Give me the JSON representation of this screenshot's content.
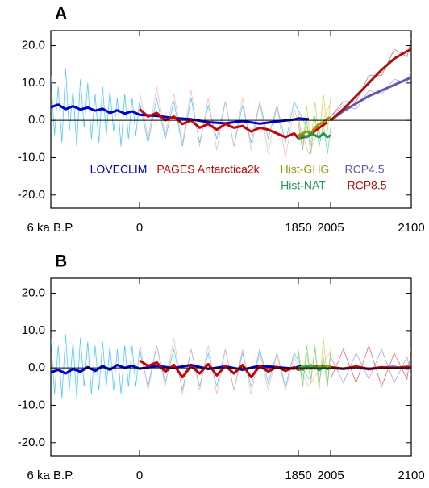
{
  "chart_data": [
    {
      "type": "line",
      "title": "A",
      "xlim": [
        -6000,
        2100
      ],
      "xticks": [
        {
          "value": -6000,
          "label": "6 ka B.P."
        },
        0,
        1850,
        2005,
        2100
      ],
      "ylim": [
        -23.5,
        24
      ],
      "yticks": [
        {
          "value": 20,
          "label": "20.0"
        },
        {
          "value": 10,
          "label": "10.0"
        },
        {
          "value": 0,
          "label": "0.0"
        },
        {
          "value": -10,
          "label": "-10.0"
        },
        {
          "value": -20,
          "label": "-20.0"
        }
      ],
      "series": [
        {
          "name": "LOVECLIM",
          "color": "#0000cc",
          "light_color": "#22bbff",
          "x": [
            -6000,
            -5500,
            -5000,
            -4500,
            -4000,
            -3500,
            -3000,
            -2500,
            -2000,
            -1500,
            -1000,
            -500,
            0,
            200,
            400,
            600,
            800,
            1000,
            1200,
            1400,
            1600,
            1800,
            1850,
            1900
          ],
          "values": [
            3.5,
            4.2,
            3.0,
            3.8,
            2.9,
            3.4,
            2.6,
            3.1,
            2.0,
            2.7,
            1.8,
            2.4,
            1.5,
            1.2,
            0.6,
            0.3,
            -0.5,
            -0.8,
            -0.2,
            -0.9,
            -0.3,
            0.2,
            0.5,
            0.3
          ],
          "raw_x": [
            -6000,
            -5750,
            -5500,
            -5250,
            -5000,
            -4750,
            -4500,
            -4250,
            -4000,
            -3750,
            -3500,
            -3250,
            -3000,
            -2750,
            -2500,
            -2250,
            -2000,
            -1750,
            -1500,
            -1250,
            -1000,
            -750,
            -500,
            -250,
            0,
            100,
            200,
            300,
            400,
            500,
            600,
            700,
            800,
            900,
            1000,
            1100,
            1200,
            1300,
            1400,
            1500,
            1600,
            1700,
            1800,
            1900
          ],
          "raw_values": [
            12,
            -4,
            9,
            -6,
            14,
            -3,
            8,
            -7,
            11,
            -2,
            10,
            -5,
            7,
            -6,
            9,
            -4,
            8,
            -3,
            6,
            -7,
            7,
            -5,
            6,
            -4,
            5,
            -6,
            6,
            -5,
            5,
            -7,
            6,
            -6,
            4,
            -5,
            5,
            -7,
            4,
            -6,
            5,
            -5,
            4,
            -6,
            5,
            -3
          ]
        },
        {
          "name": "PAGES Antarctica2k",
          "color": "#cc0000",
          "light_color": "#ffaaaa",
          "x": [
            0,
            100,
            200,
            300,
            400,
            500,
            600,
            700,
            800,
            900,
            1000,
            1100,
            1200,
            1300,
            1400,
            1500,
            1600,
            1700,
            1800,
            1850,
            1900,
            1950,
            1990
          ],
          "values": [
            3,
            1,
            2,
            0,
            1,
            -1,
            0,
            -2,
            -1,
            -2.5,
            -1,
            -2,
            -1.5,
            -3,
            -2,
            -2.5,
            -3.5,
            -4.5,
            -3.5,
            -4.8,
            -4.2,
            -2,
            -0.5
          ],
          "raw_x": [
            0,
            100,
            200,
            300,
            400,
            500,
            600,
            700,
            800,
            900,
            1000,
            1100,
            1200,
            1300,
            1400,
            1500,
            1600,
            1700,
            1800,
            1900,
            2000
          ],
          "raw_values": [
            8,
            -5,
            9,
            -4,
            7,
            -6,
            8,
            -7,
            6,
            -8,
            5,
            -7,
            6,
            -8,
            5,
            -9,
            4,
            -10,
            3,
            -9,
            4
          ]
        },
        {
          "name": "Hist-GHG",
          "color": "#999900",
          "light_color": "#cccc33",
          "x": [
            1850,
            1870,
            1890,
            1910,
            1930,
            1950,
            1970,
            1990,
            2005
          ],
          "values": [
            -4,
            -3.5,
            -3,
            -3.5,
            -2,
            -1,
            -0.5,
            0.5,
            0.8
          ],
          "raw_x": [
            1850,
            1870,
            1890,
            1910,
            1930,
            1950,
            1970,
            1990,
            2005
          ],
          "raw_values": [
            2,
            -8,
            4,
            -7,
            5,
            -5,
            7,
            -3,
            6
          ]
        },
        {
          "name": "Hist-NAT",
          "color": "#229955",
          "light_color": "#55cc88",
          "x": [
            1850,
            1870,
            1890,
            1910,
            1930,
            1950,
            1970,
            1990,
            2005
          ],
          "values": [
            -5,
            -4,
            -4.5,
            -3.5,
            -4,
            -4.5,
            -3.5,
            -4.5,
            -4
          ],
          "raw_x": [
            1850,
            1870,
            1890,
            1910,
            1930,
            1950,
            1970,
            1990,
            2005
          ],
          "raw_values": [
            -1,
            -8,
            0,
            -9,
            1,
            -7,
            -1,
            -9,
            -2
          ]
        },
        {
          "name": "RCP4.5",
          "color": "#6655aa",
          "light_color": "#9988ee",
          "x": [
            2005,
            2020,
            2035,
            2050,
            2065,
            2080,
            2095,
            2100
          ],
          "values": [
            0,
            2.5,
            4.5,
            6.5,
            8,
            9.5,
            11,
            11.5
          ],
          "raw_x": [
            2005,
            2020,
            2035,
            2050,
            2065,
            2080,
            2095,
            2100
          ],
          "raw_values": [
            1,
            4,
            3,
            8,
            7,
            11,
            10,
            13
          ]
        },
        {
          "name": "RCP8.5",
          "color": "#aa1111",
          "light_color": "#ee4444",
          "x": [
            2005,
            2020,
            2035,
            2050,
            2065,
            2080,
            2095,
            2100
          ],
          "values": [
            0,
            3,
            6.5,
            10,
            13.5,
            16.5,
            18.5,
            19
          ],
          "raw_x": [
            2005,
            2020,
            2035,
            2050,
            2065,
            2080,
            2095,
            2100
          ],
          "raw_values": [
            1,
            5,
            5,
            12,
            12,
            19,
            17,
            22
          ]
        }
      ]
    },
    {
      "type": "line",
      "title": "B",
      "xlim": [
        -6000,
        2100
      ],
      "xticks": [
        {
          "value": -6000,
          "label": "6 ka B.P."
        },
        0,
        1850,
        2005,
        2100
      ],
      "ylim": [
        -23.5,
        24
      ],
      "yticks": [
        {
          "value": 20,
          "label": "20.0"
        },
        {
          "value": 10,
          "label": "10.0"
        },
        {
          "value": 0,
          "label": "0.0"
        },
        {
          "value": -10,
          "label": "-10.0"
        },
        {
          "value": -20,
          "label": "-20.0"
        }
      ],
      "series": [
        {
          "color": "#0000cc",
          "light_color": "#22bbff",
          "x": [
            -6000,
            -5500,
            -5000,
            -4500,
            -4000,
            -3500,
            -3000,
            -2500,
            -2000,
            -1500,
            -1000,
            -500,
            0,
            200,
            400,
            600,
            800,
            1000,
            1200,
            1400,
            1600,
            1800,
            1850,
            1900
          ],
          "values": [
            -1.2,
            -0.5,
            -1.5,
            -0.3,
            -1,
            0.2,
            -0.8,
            0.5,
            -0.5,
            0.8,
            0,
            0.6,
            -0.2,
            0.5,
            0,
            0.8,
            -0.3,
            0.4,
            -0.5,
            0.6,
            0.2,
            -0.2,
            0.4,
            0.1
          ],
          "raw_x": [
            -6000,
            -5750,
            -5500,
            -5250,
            -5000,
            -4750,
            -4500,
            -4250,
            -4000,
            -3750,
            -3500,
            -3250,
            -3000,
            -2750,
            -2500,
            -2250,
            -2000,
            -1750,
            -1500,
            -1250,
            -1000,
            -750,
            -500,
            -250,
            0,
            100,
            200,
            300,
            400,
            500,
            600,
            700,
            800,
            900,
            1000,
            1100,
            1200,
            1300,
            1400,
            1500,
            1600,
            1700,
            1800,
            1900
          ],
          "raw_values": [
            8,
            -7,
            6,
            -8,
            9,
            -6,
            7,
            -8,
            8,
            -5,
            7,
            -7,
            6,
            -6,
            7,
            -5,
            6,
            -6,
            5,
            -7,
            6,
            -5,
            6,
            -5,
            5,
            -5,
            6,
            -4,
            5,
            -6,
            5,
            -5,
            4,
            -5,
            5,
            -6,
            4,
            -5,
            5,
            -4,
            4,
            -5,
            4,
            -3
          ]
        },
        {
          "color": "#cc0000",
          "light_color": "#ffaaaa",
          "x": [
            0,
            100,
            200,
            300,
            400,
            500,
            600,
            700,
            800,
            900,
            1000,
            1100,
            1200,
            1300,
            1400,
            1500,
            1600,
            1700,
            1800,
            1850,
            1900,
            1950,
            1990
          ],
          "values": [
            2,
            0.5,
            1.5,
            -1,
            0.8,
            -2.5,
            0.5,
            -1.5,
            1,
            -2,
            0.5,
            -1.5,
            0.8,
            -2.5,
            0.5,
            -1,
            0.3,
            -0.8,
            0.2,
            -0.5,
            0.3,
            0.5,
            0.2
          ],
          "raw_x": [
            0,
            100,
            200,
            300,
            400,
            500,
            600,
            700,
            800,
            900,
            1000,
            1100,
            1200,
            1300,
            1400,
            1500,
            1600,
            1700,
            1800,
            1900,
            2000
          ],
          "raw_values": [
            7,
            -6,
            6,
            -5,
            8,
            -7,
            5,
            -6,
            6,
            -7,
            5,
            -6,
            5,
            -7,
            4,
            -6,
            4,
            -6,
            3,
            -5,
            4
          ]
        },
        {
          "color": "#999900",
          "light_color": "#cccc33",
          "x": [
            1850,
            1870,
            1890,
            1910,
            1930,
            1950,
            1970,
            1990,
            2005
          ],
          "values": [
            -0.5,
            0.5,
            -0.3,
            0.8,
            -0.2,
            0.5,
            0,
            0.6,
            0.3
          ],
          "raw_x": [
            1850,
            1870,
            1890,
            1910,
            1930,
            1950,
            1970,
            1990,
            2005
          ],
          "raw_values": [
            5,
            -5,
            4,
            -4,
            6,
            -6,
            8,
            -4,
            5
          ]
        },
        {
          "color": "#229955",
          "light_color": "#55cc88",
          "x": [
            1850,
            1870,
            1890,
            1910,
            1930,
            1950,
            1970,
            1990,
            2005
          ],
          "values": [
            0.3,
            -0.5,
            0.6,
            -0.2,
            0.4,
            -0.6,
            0.2,
            -0.3,
            0.1
          ],
          "raw_x": [
            1850,
            1870,
            1890,
            1910,
            1930,
            1950,
            1970,
            1990,
            2005
          ],
          "raw_values": [
            4,
            -5,
            6,
            -3,
            5,
            -4,
            3,
            -5,
            4
          ]
        },
        {
          "color": "#6655aa",
          "light_color": "#9988ee",
          "x": [
            2005,
            2020,
            2035,
            2050,
            2065,
            2080,
            2095,
            2100
          ],
          "values": [
            0,
            -0.3,
            0.2,
            -0.4,
            0.1,
            0.3,
            -0.2,
            0.1
          ],
          "raw_x": [
            2005,
            2020,
            2035,
            2050,
            2065,
            2080,
            2095,
            2100
          ],
          "raw_values": [
            3,
            -4,
            4,
            -3,
            5,
            -4,
            3,
            -2
          ]
        },
        {
          "color": "#aa1111",
          "light_color": "#ee4444",
          "x": [
            2005,
            2020,
            2035,
            2050,
            2065,
            2080,
            2095,
            2100
          ],
          "values": [
            0.2,
            -0.2,
            0.4,
            -0.3,
            0.2,
            -0.1,
            0.3,
            0.2
          ],
          "raw_x": [
            2005,
            2020,
            2035,
            2050,
            2065,
            2080,
            2095,
            2100
          ],
          "raw_values": [
            -3,
            5,
            -4,
            6,
            -5,
            4,
            -3,
            5
          ]
        }
      ]
    }
  ]
}
